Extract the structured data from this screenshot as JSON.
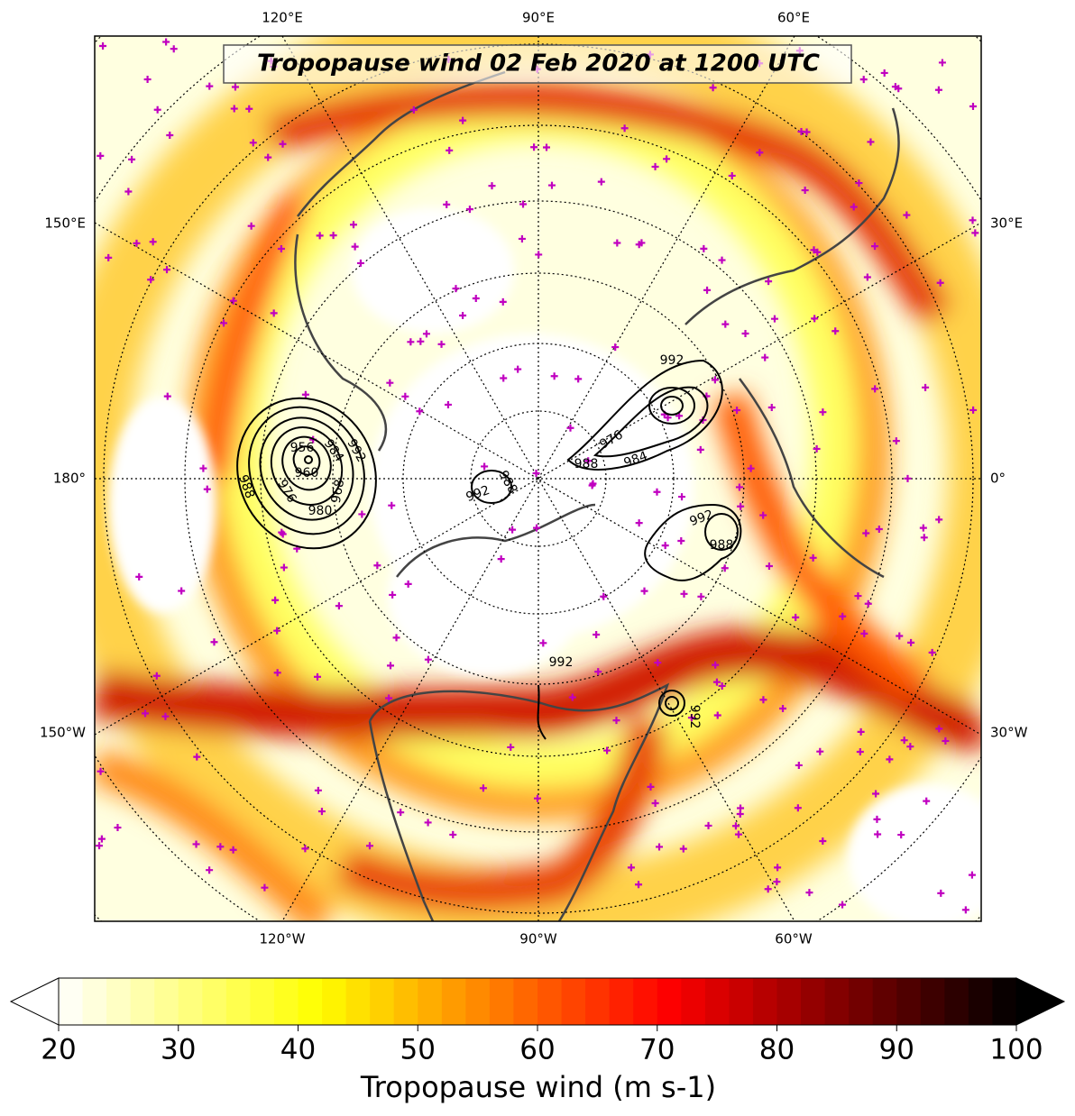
{
  "title": "Tropopause wind 02 Feb 2020 at 1200 UTC",
  "lon_labels": {
    "top": [
      "120°E",
      "90°E",
      "60°E"
    ],
    "bottom": [
      "120°W",
      "90°W",
      "60°W"
    ],
    "left": [
      "150°E",
      "180°",
      "150°W"
    ],
    "right": [
      "30°E",
      "0°",
      "30°W"
    ]
  },
  "contour_labels": [
    988,
    976,
    960,
    956,
    984,
    992,
    968,
    980,
    992,
    988,
    992,
    976,
    988,
    984,
    992,
    988,
    992,
    992
  ],
  "colorbar": {
    "label": "Tropopause wind (m s-1)",
    "lim": [
      20,
      100
    ],
    "ticks": [
      20,
      30,
      40,
      50,
      60,
      70,
      80,
      90,
      100
    ],
    "colormap": "hot_r",
    "extend": "both"
  }
}
